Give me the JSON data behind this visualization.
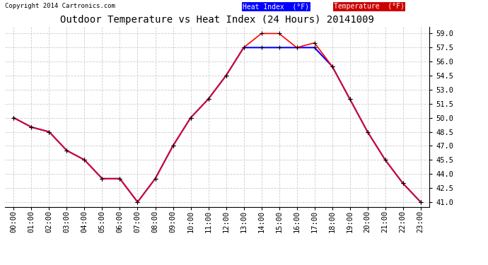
{
  "title": "Outdoor Temperature vs Heat Index (24 Hours) 20141009",
  "copyright": "Copyright 2014 Cartronics.com",
  "background_color": "#ffffff",
  "plot_background": "#ffffff",
  "grid_color": "#cccccc",
  "hours": [
    "00:00",
    "01:00",
    "02:00",
    "03:00",
    "04:00",
    "05:00",
    "06:00",
    "07:00",
    "08:00",
    "09:00",
    "10:00",
    "11:00",
    "12:00",
    "13:00",
    "14:00",
    "15:00",
    "16:00",
    "17:00",
    "18:00",
    "19:00",
    "20:00",
    "21:00",
    "22:00",
    "23:00"
  ],
  "temperature": [
    50.0,
    49.0,
    48.5,
    46.5,
    45.5,
    43.5,
    43.5,
    41.0,
    43.5,
    47.0,
    50.0,
    52.0,
    54.5,
    57.5,
    59.0,
    59.0,
    57.5,
    58.0,
    55.5,
    52.0,
    48.5,
    45.5,
    43.0,
    41.0
  ],
  "heat_index": [
    50.0,
    49.0,
    48.5,
    46.5,
    45.5,
    43.5,
    43.5,
    41.0,
    43.5,
    47.0,
    50.0,
    52.0,
    54.5,
    57.5,
    57.5,
    57.5,
    57.5,
    57.5,
    55.5,
    52.0,
    48.5,
    45.5,
    43.0,
    41.0
  ],
  "temp_color": "#ff0000",
  "heat_color": "#0000ff",
  "ylim_min": 40.5,
  "ylim_max": 59.75,
  "yticks": [
    41.0,
    42.5,
    44.0,
    45.5,
    47.0,
    48.5,
    50.0,
    51.5,
    53.0,
    54.5,
    56.0,
    57.5,
    59.0
  ],
  "legend_heat_bg": "#0000ff",
  "legend_temp_bg": "#cc0000",
  "legend_text_color": "#ffffff",
  "title_fontsize": 10,
  "tick_fontsize": 7.5,
  "copyright_fontsize": 6.5
}
